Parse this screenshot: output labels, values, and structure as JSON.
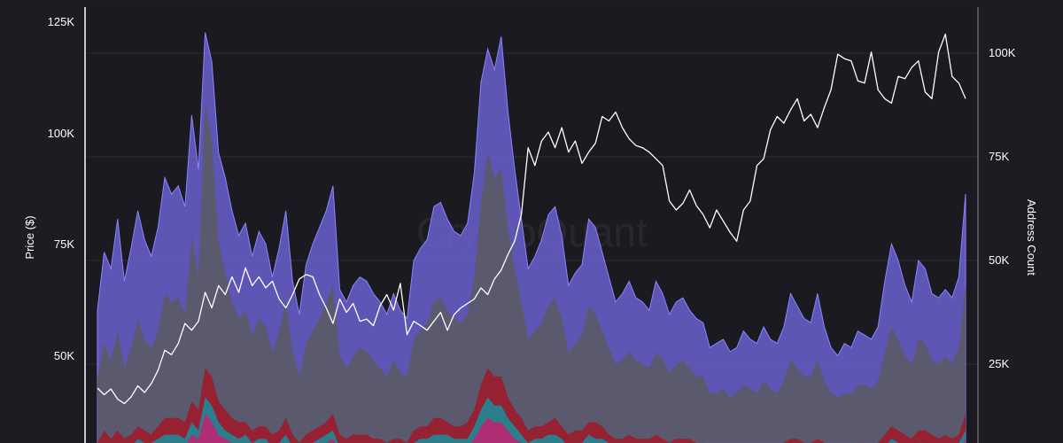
{
  "chart_data": {
    "type": "area",
    "watermark": "CryptoQuant",
    "left_axis": {
      "label": "Price ($)",
      "ticks": [
        "125K",
        "100K",
        "75K",
        "50K"
      ],
      "values": [
        125000,
        100000,
        75000,
        50000
      ]
    },
    "right_axis": {
      "label": "Address Count",
      "ticks": [
        "100K",
        "75K",
        "50K",
        "25K"
      ],
      "values": [
        100000,
        75000,
        50000,
        25000
      ]
    },
    "colors": {
      "background": "#1c1c21",
      "plot_background": "#1b1a21",
      "axis_line": "#ffffff",
      "gridline": "#2c2b33",
      "price_line": "#ffffff",
      "band_purple": "#6a62cf",
      "band_gray": "#5a5960",
      "band_red": "#9b1b2b",
      "band_teal": "#1f8a96",
      "band_pink": "#b52a72"
    },
    "series": [
      {
        "key": "purple",
        "values": [
          38,
          52,
          48,
          60,
          45,
          53,
          62,
          55,
          51,
          58,
          70,
          66,
          68,
          63,
          85,
          72,
          105,
          98,
          76,
          70,
          62,
          56,
          59,
          51,
          57,
          54,
          46,
          53,
          62,
          45,
          37,
          49,
          54,
          58,
          62,
          68,
          43,
          40,
          44,
          46,
          45,
          42,
          40,
          37,
          42,
          38,
          36,
          50,
          53,
          55,
          63,
          64,
          60,
          57,
          56,
          59,
          71,
          93,
          101,
          96,
          104,
          86,
          72,
          60,
          48,
          51,
          55,
          61,
          63,
          56,
          44,
          47,
          49,
          60,
          58,
          52,
          46,
          40,
          42,
          45,
          41,
          40,
          38,
          45,
          42,
          37,
          40,
          41,
          38,
          36,
          35,
          29,
          30,
          31,
          28,
          29,
          33,
          31,
          30,
          34,
          31,
          30,
          34,
          42,
          39,
          36,
          35,
          42,
          34,
          29,
          27,
          30,
          29,
          33,
          32,
          31,
          34,
          45,
          54,
          50,
          44,
          40,
          50,
          48,
          42,
          41,
          43,
          41,
          46,
          66
        ]
      },
      {
        "key": "gray",
        "values": [
          22,
          30,
          26,
          33,
          24,
          29,
          36,
          31,
          29,
          33,
          42,
          40,
          41,
          37,
          56,
          46,
          88,
          79,
          55,
          47,
          40,
          36,
          38,
          32,
          36,
          34,
          28,
          33,
          40,
          28,
          22,
          30,
          33,
          36,
          40,
          44,
          27,
          24,
          27,
          29,
          28,
          26,
          24,
          22,
          26,
          23,
          22,
          31,
          33,
          35,
          40,
          41,
          38,
          36,
          35,
          37,
          46,
          64,
          76,
          70,
          72,
          58,
          48,
          40,
          31,
          33,
          35,
          39,
          41,
          36,
          28,
          30,
          32,
          39,
          37,
          33,
          29,
          25,
          26,
          28,
          26,
          25,
          24,
          28,
          26,
          23,
          25,
          26,
          24,
          22,
          22,
          18,
          18,
          19,
          17,
          18,
          20,
          19,
          18,
          21,
          19,
          18,
          21,
          26,
          24,
          22,
          22,
          26,
          21,
          18,
          17,
          18,
          18,
          20,
          20,
          19,
          21,
          28,
          34,
          31,
          27,
          25,
          31,
          30,
          26,
          25,
          27,
          25,
          29,
          44
        ]
      },
      {
        "key": "red",
        "values": [
          6,
          9,
          7,
          9,
          7,
          8,
          10,
          9,
          8,
          10,
          12,
          12,
          12,
          11,
          16,
          14,
          24,
          22,
          16,
          14,
          12,
          11,
          11,
          9,
          10,
          10,
          8,
          9,
          12,
          8,
          6,
          8,
          9,
          10,
          11,
          13,
          8,
          7,
          8,
          8,
          8,
          7,
          7,
          6,
          7,
          7,
          6,
          9,
          10,
          10,
          12,
          12,
          11,
          10,
          10,
          11,
          14,
          20,
          24,
          22,
          22,
          17,
          14,
          12,
          9,
          10,
          10,
          11,
          12,
          10,
          8,
          9,
          9,
          11,
          11,
          10,
          8,
          7,
          7,
          8,
          7,
          7,
          7,
          8,
          7,
          6,
          7,
          7,
          7,
          6,
          6,
          5,
          5,
          5,
          5,
          5,
          6,
          5,
          5,
          6,
          5,
          5,
          6,
          7,
          7,
          6,
          6,
          7,
          6,
          5,
          5,
          5,
          5,
          6,
          6,
          5,
          6,
          8,
          10,
          9,
          8,
          7,
          9,
          9,
          8,
          7,
          8,
          7,
          8,
          13
        ]
      },
      {
        "key": "teal",
        "values": [
          4,
          6,
          5,
          6,
          5,
          5,
          7,
          6,
          6,
          7,
          8,
          8,
          8,
          7,
          11,
          9,
          17,
          15,
          11,
          9,
          8,
          7,
          8,
          6,
          7,
          7,
          5,
          6,
          8,
          5,
          4,
          6,
          6,
          7,
          8,
          9,
          5,
          5,
          5,
          6,
          5,
          5,
          5,
          4,
          5,
          5,
          4,
          6,
          7,
          7,
          8,
          8,
          8,
          7,
          7,
          7,
          10,
          14,
          17,
          15,
          15,
          12,
          10,
          8,
          6,
          7,
          7,
          8,
          8,
          7,
          5,
          6,
          6,
          8,
          7,
          7,
          6,
          5,
          5,
          6,
          5,
          5,
          5,
          5,
          5,
          4,
          5,
          5,
          5,
          4,
          4,
          3,
          3,
          4,
          3,
          3,
          4,
          4,
          3,
          4,
          4,
          3,
          4,
          5,
          5,
          4,
          4,
          5,
          4,
          3,
          3,
          4,
          3,
          4,
          4,
          4,
          4,
          5,
          7,
          6,
          5,
          5,
          6,
          6,
          5,
          5,
          5,
          5,
          6,
          9
        ]
      },
      {
        "key": "pink",
        "values": [
          3,
          4,
          4,
          5,
          4,
          4,
          5,
          5,
          4,
          5,
          6,
          6,
          6,
          5,
          8,
          7,
          13,
          11,
          8,
          7,
          6,
          5,
          6,
          4,
          5,
          5,
          4,
          5,
          6,
          4,
          3,
          4,
          4,
          5,
          6,
          7,
          4,
          3,
          4,
          4,
          4,
          4,
          3,
          3,
          4,
          3,
          3,
          4,
          5,
          5,
          6,
          6,
          6,
          5,
          5,
          5,
          7,
          10,
          12,
          11,
          11,
          9,
          7,
          6,
          4,
          5,
          5,
          6,
          6,
          5,
          4,
          4,
          5,
          6,
          5,
          5,
          4,
          3,
          4,
          4,
          4,
          4,
          3,
          4,
          4,
          3,
          4,
          4,
          3,
          3,
          3,
          2,
          2,
          3,
          2,
          2,
          3,
          3,
          2,
          3,
          3,
          2,
          3,
          4,
          3,
          3,
          3,
          4,
          3,
          2,
          2,
          3,
          2,
          3,
          3,
          3,
          3,
          4,
          5,
          4,
          4,
          3,
          4,
          4,
          4,
          3,
          4,
          3,
          4,
          7
        ]
      },
      {
        "key": "price",
        "values": [
          43000,
          41500,
          42800,
          40500,
          39500,
          41000,
          43500,
          42000,
          44000,
          47000,
          51500,
          50500,
          53000,
          57500,
          56000,
          58000,
          64500,
          61000,
          66000,
          64000,
          68000,
          64500,
          70000,
          66000,
          68000,
          65500,
          67000,
          63000,
          61000,
          64000,
          67500,
          68500,
          68000,
          64000,
          61000,
          57500,
          63000,
          60000,
          62000,
          58000,
          58500,
          57000,
          61500,
          64000,
          60500,
          66500,
          55000,
          58000,
          57000,
          56000,
          58000,
          60000,
          56000,
          59500,
          61000,
          62000,
          63000,
          65500,
          64000,
          67500,
          69500,
          73000,
          76000,
          82000,
          97000,
          93000,
          98500,
          100500,
          97000,
          101500,
          96000,
          98500,
          93500,
          96000,
          98000,
          104000,
          103000,
          105000,
          101500,
          99000,
          97500,
          97000,
          96000,
          94500,
          93000,
          85000,
          83000,
          84500,
          87500,
          84000,
          82000,
          79000,
          83000,
          80500,
          78000,
          76000,
          83000,
          85000,
          93000,
          94500,
          101000,
          104000,
          102500,
          105500,
          108000,
          103000,
          104500,
          101500,
          106000,
          110000,
          118000,
          117000,
          116500,
          112000,
          111500,
          118500,
          110000,
          108000,
          107000,
          113000,
          112500,
          115000,
          116500,
          109500,
          108000,
          118500,
          122500,
          113000,
          111500,
          108000
        ]
      }
    ]
  }
}
